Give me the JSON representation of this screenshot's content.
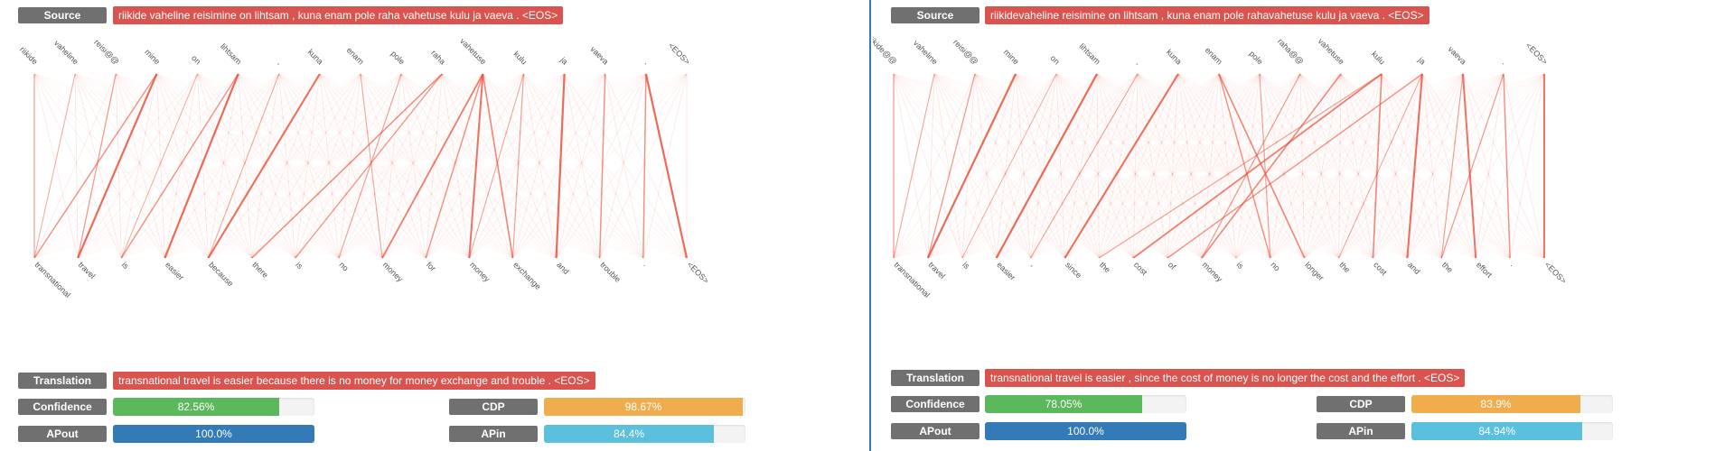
{
  "colors": {
    "label_bg": "#707070",
    "sentence_bg": "#d9534f",
    "confidence": "#5cb85c",
    "cdp": "#f0ad4e",
    "apout": "#337ab7",
    "apin": "#5bc0de",
    "attention_line": "#e8503a"
  },
  "panels": [
    {
      "source_label": "Source",
      "source_text": "riikide vaheline reisimine on lihtsam , kuna enam pole raha vahetuse kulu ja vaeva . <EOS>",
      "translation_label": "Translation",
      "translation_text": "transnational travel is easier because there is no money for money exchange and trouble . <EOS>",
      "metrics": [
        {
          "label": "Confidence",
          "value": 82.56,
          "text": "82.56%",
          "color": "#5cb85c"
        },
        {
          "label": "CDP",
          "value": 98.67,
          "text": "98.67%",
          "color": "#f0ad4e"
        },
        {
          "label": "APout",
          "value": 100.0,
          "text": "100.0%",
          "color": "#337ab7"
        },
        {
          "label": "APin",
          "value": 84.4,
          "text": "84.4%",
          "color": "#5bc0de"
        }
      ],
      "source_tokens": [
        "riikide",
        "vaheline",
        "reisi@@",
        "mine",
        "on",
        "lihtsam",
        ",",
        "kuna",
        "enam",
        "pole",
        "raha",
        "vahetuse",
        "kulu",
        "ja",
        "vaeva",
        ".",
        "<EOS>"
      ],
      "target_tokens": [
        "transnational",
        "travel",
        "is",
        "easier",
        "because",
        "there",
        "is",
        "no",
        "money",
        "for",
        "money",
        "exchange",
        "and",
        "trouble",
        ".",
        "<EOS>"
      ],
      "strong_links": [
        [
          3,
          1,
          0.9
        ],
        [
          3,
          0,
          0.5
        ],
        [
          0,
          0,
          0.35
        ],
        [
          2,
          1,
          0.4
        ],
        [
          5,
          3,
          0.9
        ],
        [
          5,
          2,
          0.5
        ],
        [
          7,
          4,
          0.85
        ],
        [
          10,
          5,
          0.55
        ],
        [
          10,
          6,
          0.45
        ],
        [
          9,
          7,
          0.35
        ],
        [
          11,
          8,
          0.7
        ],
        [
          11,
          9,
          0.5
        ],
        [
          11,
          10,
          0.8
        ],
        [
          11,
          11,
          0.6
        ],
        [
          12,
          11,
          0.35
        ],
        [
          13,
          12,
          0.9
        ],
        [
          15,
          15,
          0.9
        ],
        [
          15,
          14,
          0.5
        ],
        [
          14,
          13,
          0.5
        ],
        [
          8,
          8,
          0.3
        ],
        [
          6,
          4,
          0.3
        ],
        [
          1,
          0,
          0.25
        ],
        [
          4,
          2,
          0.25
        ],
        [
          12,
          10,
          0.3
        ]
      ]
    },
    {
      "source_label": "Source",
      "source_text": "riikidevaheline reisimine on lihtsam , kuna enam pole rahavahetuse kulu ja vaeva . <EOS>",
      "translation_label": "Translation",
      "translation_text": "transnational travel is easier , since the cost of money is no longer the cost and the effort . <EOS>",
      "metrics": [
        {
          "label": "Confidence",
          "value": 78.05,
          "text": "78.05%",
          "color": "#5cb85c"
        },
        {
          "label": "CDP",
          "value": 83.9,
          "text": "83.9%",
          "color": "#f0ad4e"
        },
        {
          "label": "APout",
          "value": 100.0,
          "text": "100.0%",
          "color": "#337ab7"
        },
        {
          "label": "APin",
          "value": 84.94,
          "text": "84.94%",
          "color": "#5bc0de"
        }
      ],
      "source_tokens": [
        "riikide@@",
        "vaheline",
        "reisi@@",
        "mine",
        "on",
        "lihtsam",
        ",",
        "kuna",
        "enam",
        "pole",
        "raha@@",
        "vahetuse",
        "kulu",
        "ja",
        "vaeva",
        ".",
        "<EOS>"
      ],
      "target_tokens": [
        "transnational",
        "travel",
        "is",
        "easier",
        ",",
        "since",
        "the",
        "cost",
        "of",
        "money",
        "is",
        "no",
        "longer",
        "the",
        "cost",
        "and",
        "the",
        "effort",
        ".",
        "<EOS>"
      ],
      "strong_links": [
        [
          3,
          1,
          0.9
        ],
        [
          0,
          0,
          0.4
        ],
        [
          1,
          0,
          0.3
        ],
        [
          2,
          1,
          0.4
        ],
        [
          5,
          3,
          0.9
        ],
        [
          7,
          5,
          0.85
        ],
        [
          12,
          7,
          0.7
        ],
        [
          12,
          14,
          0.6
        ],
        [
          11,
          9,
          0.6
        ],
        [
          10,
          9,
          0.4
        ],
        [
          8,
          11,
          0.5
        ],
        [
          8,
          12,
          0.6
        ],
        [
          9,
          11,
          0.35
        ],
        [
          13,
          15,
          0.85
        ],
        [
          13,
          8,
          0.5
        ],
        [
          14,
          17,
          0.8
        ],
        [
          15,
          18,
          0.5
        ],
        [
          16,
          19,
          0.8
        ],
        [
          15,
          16,
          0.4
        ],
        [
          12,
          6,
          0.4
        ],
        [
          14,
          16,
          0.35
        ],
        [
          6,
          4,
          0.35
        ],
        [
          4,
          2,
          0.25
        ],
        [
          13,
          13,
          0.3
        ]
      ]
    }
  ]
}
